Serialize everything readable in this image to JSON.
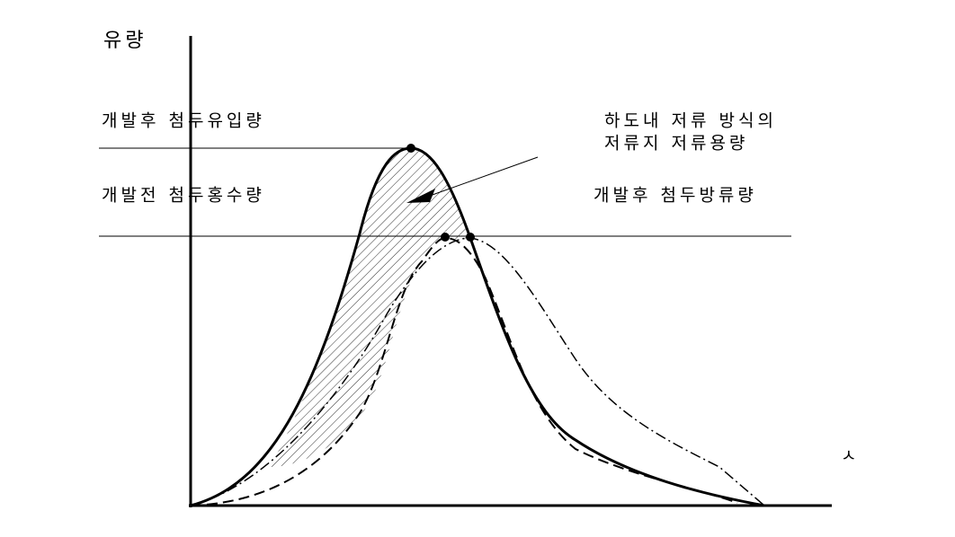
{
  "y_axis_label": "유량",
  "x_axis_label": "ㅅ",
  "labels": {
    "peak_inflow_after": "개발후 첨두유입량",
    "peak_flood_before": "개발전 첨두홍수량",
    "storage_line1": "하도내 저류 방식의",
    "storage_line2": "저류지 저류용량",
    "peak_outflow_after": "개발후 첨두방류량"
  }
}
